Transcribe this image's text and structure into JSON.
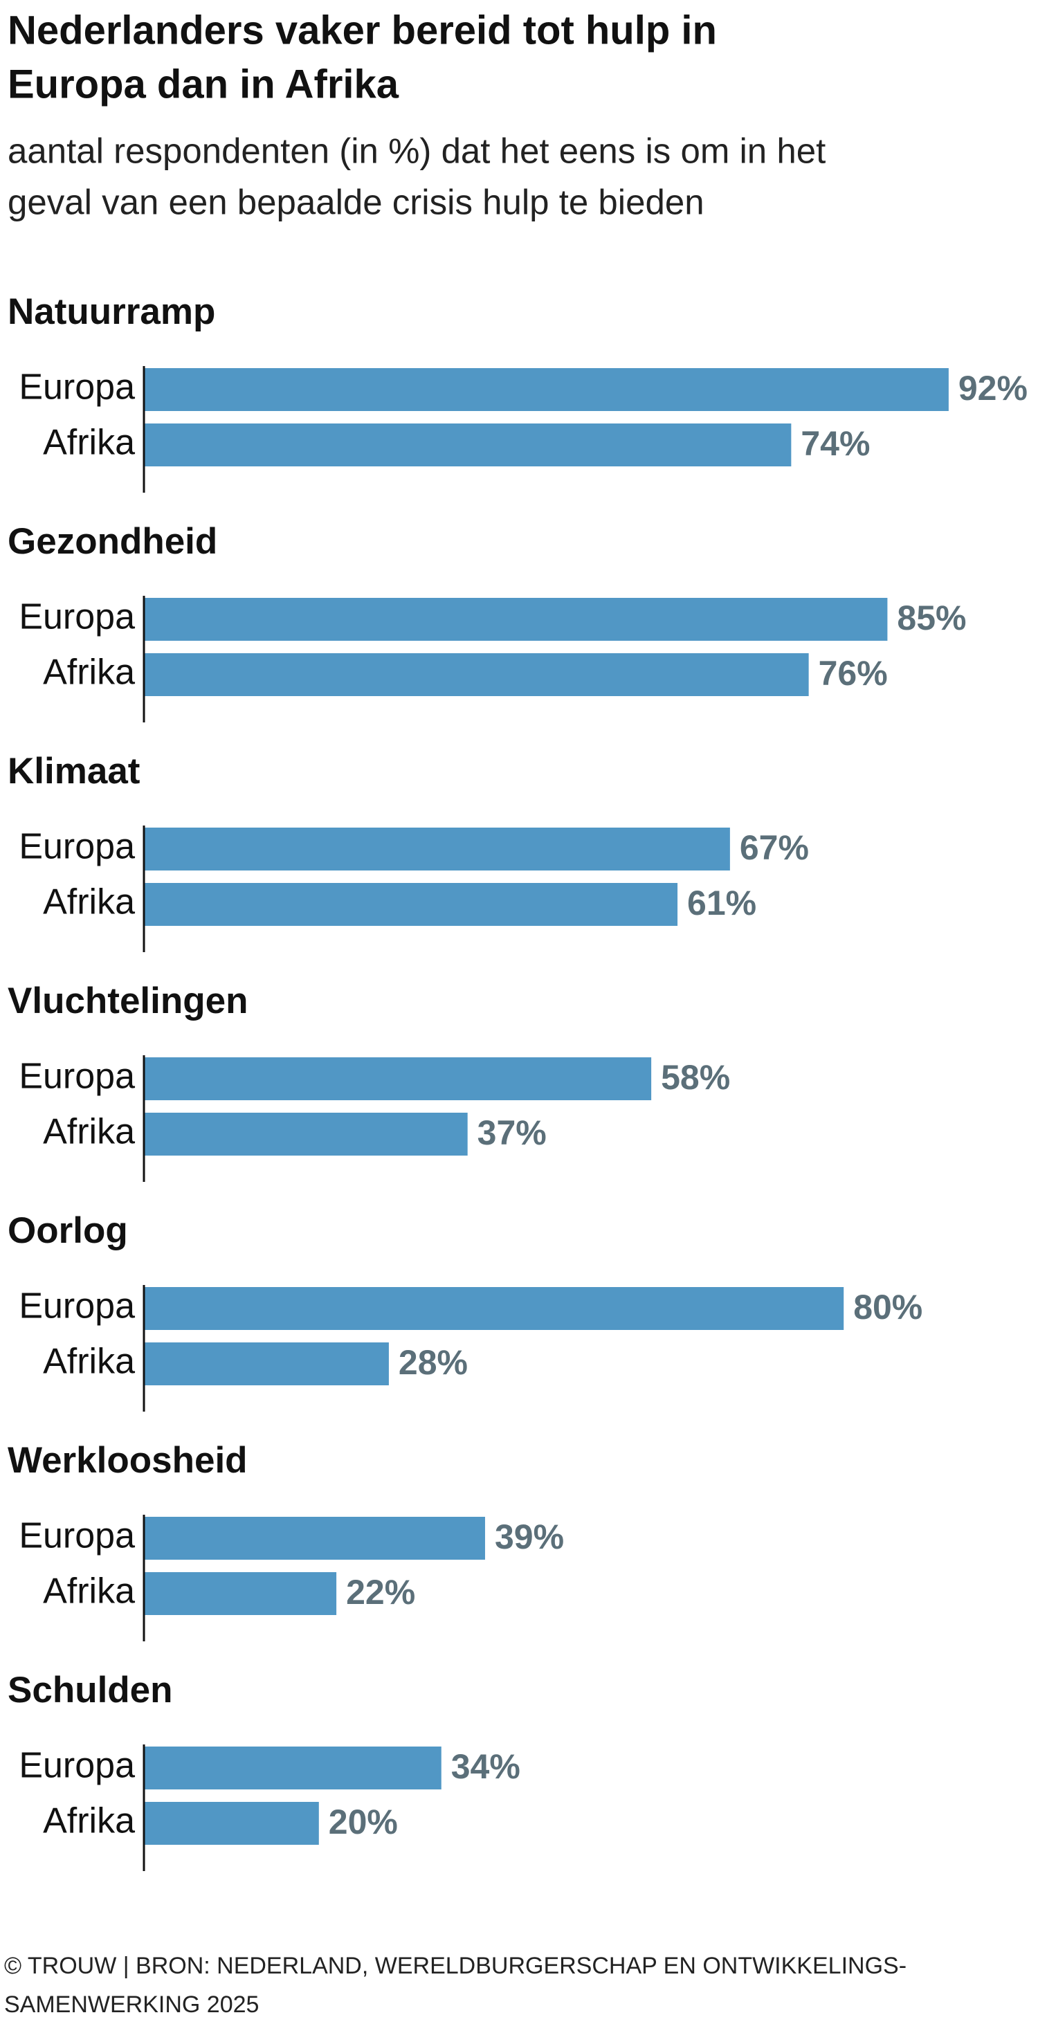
{
  "title": [
    "Nederlanders vaker bereid tot hulp in",
    "Europa dan in Afrika"
  ],
  "subtitle": [
    "aantal respondenten (in %) dat het eens is om in het",
    "geval van een bepaalde crisis hulp te bieden"
  ],
  "source": [
    "© TROUW | BRON: NEDERLAND, WERELDBURGERSCHAP EN ONTWIKKELINGS-",
    "SAMENWERKING 2025"
  ],
  "chart_data": [
    {
      "type": "bar",
      "title": "Natuurramp",
      "categories": [
        "Europa",
        "Afrika"
      ],
      "values": [
        92,
        74
      ],
      "value_labels": [
        "92%",
        "74%"
      ],
      "color": "#5197c5"
    },
    {
      "type": "bar",
      "title": "Gezondheid",
      "categories": [
        "Europa",
        "Afrika"
      ],
      "values": [
        85,
        76
      ],
      "value_labels": [
        "85%",
        "76%"
      ],
      "color": "#5197c5"
    },
    {
      "type": "bar",
      "title": "Klimaat",
      "categories": [
        "Europa",
        "Afrika"
      ],
      "values": [
        67,
        61
      ],
      "value_labels": [
        "67%",
        "61%"
      ],
      "color": "#5197c5"
    },
    {
      "type": "bar",
      "title": "Vluchtelingen",
      "categories": [
        "Europa",
        "Afrika"
      ],
      "values": [
        58,
        37
      ],
      "value_labels": [
        "58%",
        "37%"
      ],
      "color": "#5197c5"
    },
    {
      "type": "bar",
      "title": "Oorlog",
      "categories": [
        "Europa",
        "Afrika"
      ],
      "values": [
        80,
        28
      ],
      "value_labels": [
        "80%",
        "28%"
      ],
      "color": "#5197c5"
    },
    {
      "type": "bar",
      "title": "Werkloosheid",
      "categories": [
        "Europa",
        "Afrika"
      ],
      "values": [
        39,
        22
      ],
      "value_labels": [
        "39%",
        "22%"
      ],
      "color": "#5197c5"
    },
    {
      "type": "bar",
      "title": "Schulden",
      "categories": [
        "Europa",
        "Afrika"
      ],
      "values": [
        34,
        20
      ],
      "value_labels": [
        "34%",
        "20%"
      ],
      "color": "#5197c5"
    }
  ]
}
